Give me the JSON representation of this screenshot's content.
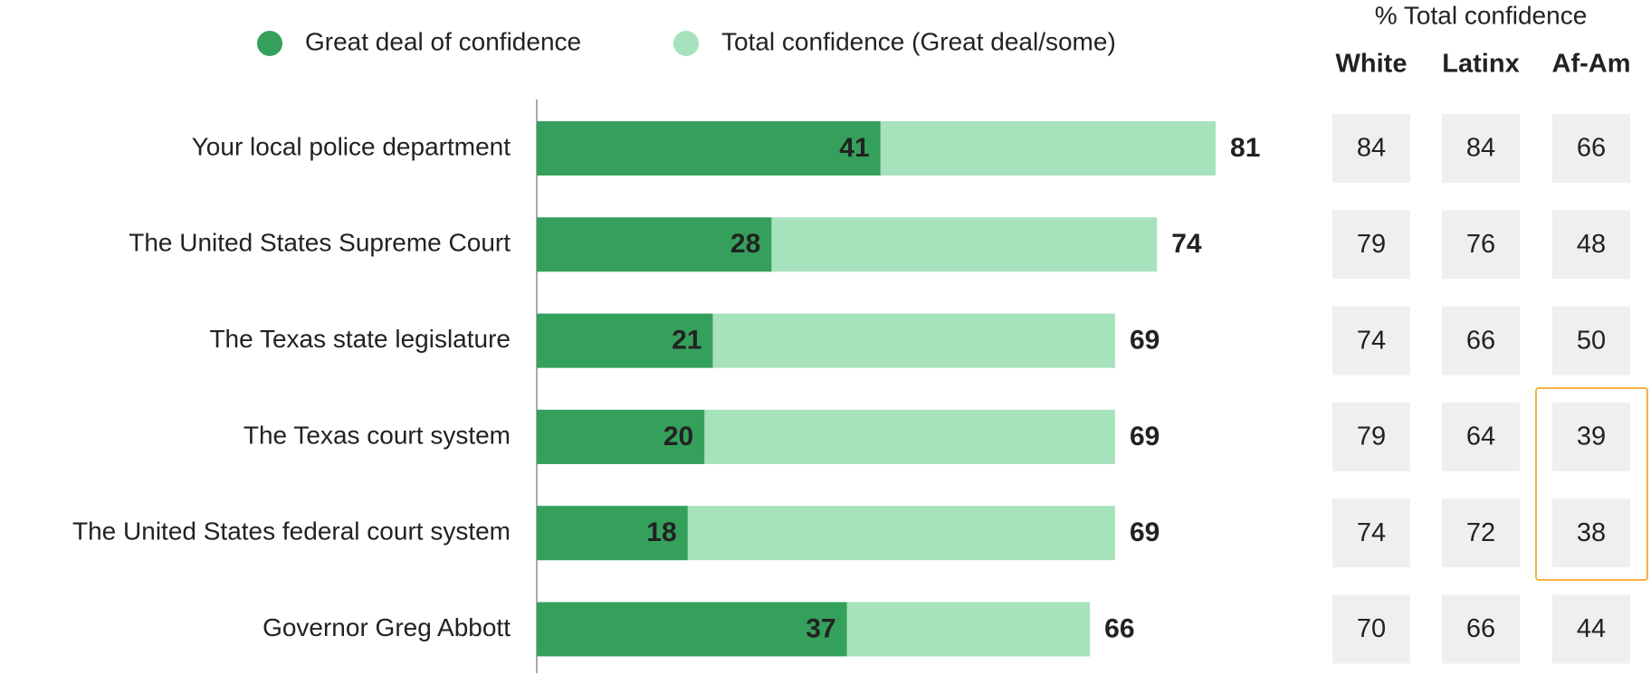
{
  "chart_data": {
    "type": "bar",
    "categories": [
      "Your local police department",
      "The United States Supreme Court",
      "The Texas state legislature",
      "The Texas court system",
      "The United States federal court system",
      "Governor Greg Abbott"
    ],
    "series": [
      {
        "name": "Total confidence (Great deal/some)",
        "color": "#a6e2bc",
        "values": [
          81,
          74,
          69,
          69,
          69,
          66
        ]
      },
      {
        "name": "Great deal of confidence",
        "color": "#35a05c",
        "values": [
          41,
          28,
          21,
          20,
          18,
          37
        ]
      }
    ],
    "xlim": [
      0,
      100
    ]
  },
  "table": {
    "title": "% Total confidence",
    "columns": [
      "White",
      "Latinx",
      "Af-Am"
    ],
    "rows": [
      [
        84,
        84,
        66
      ],
      [
        79,
        76,
        48
      ],
      [
        74,
        66,
        50
      ],
      [
        79,
        64,
        39
      ],
      [
        74,
        72,
        38
      ],
      [
        70,
        66,
        44
      ]
    ]
  }
}
